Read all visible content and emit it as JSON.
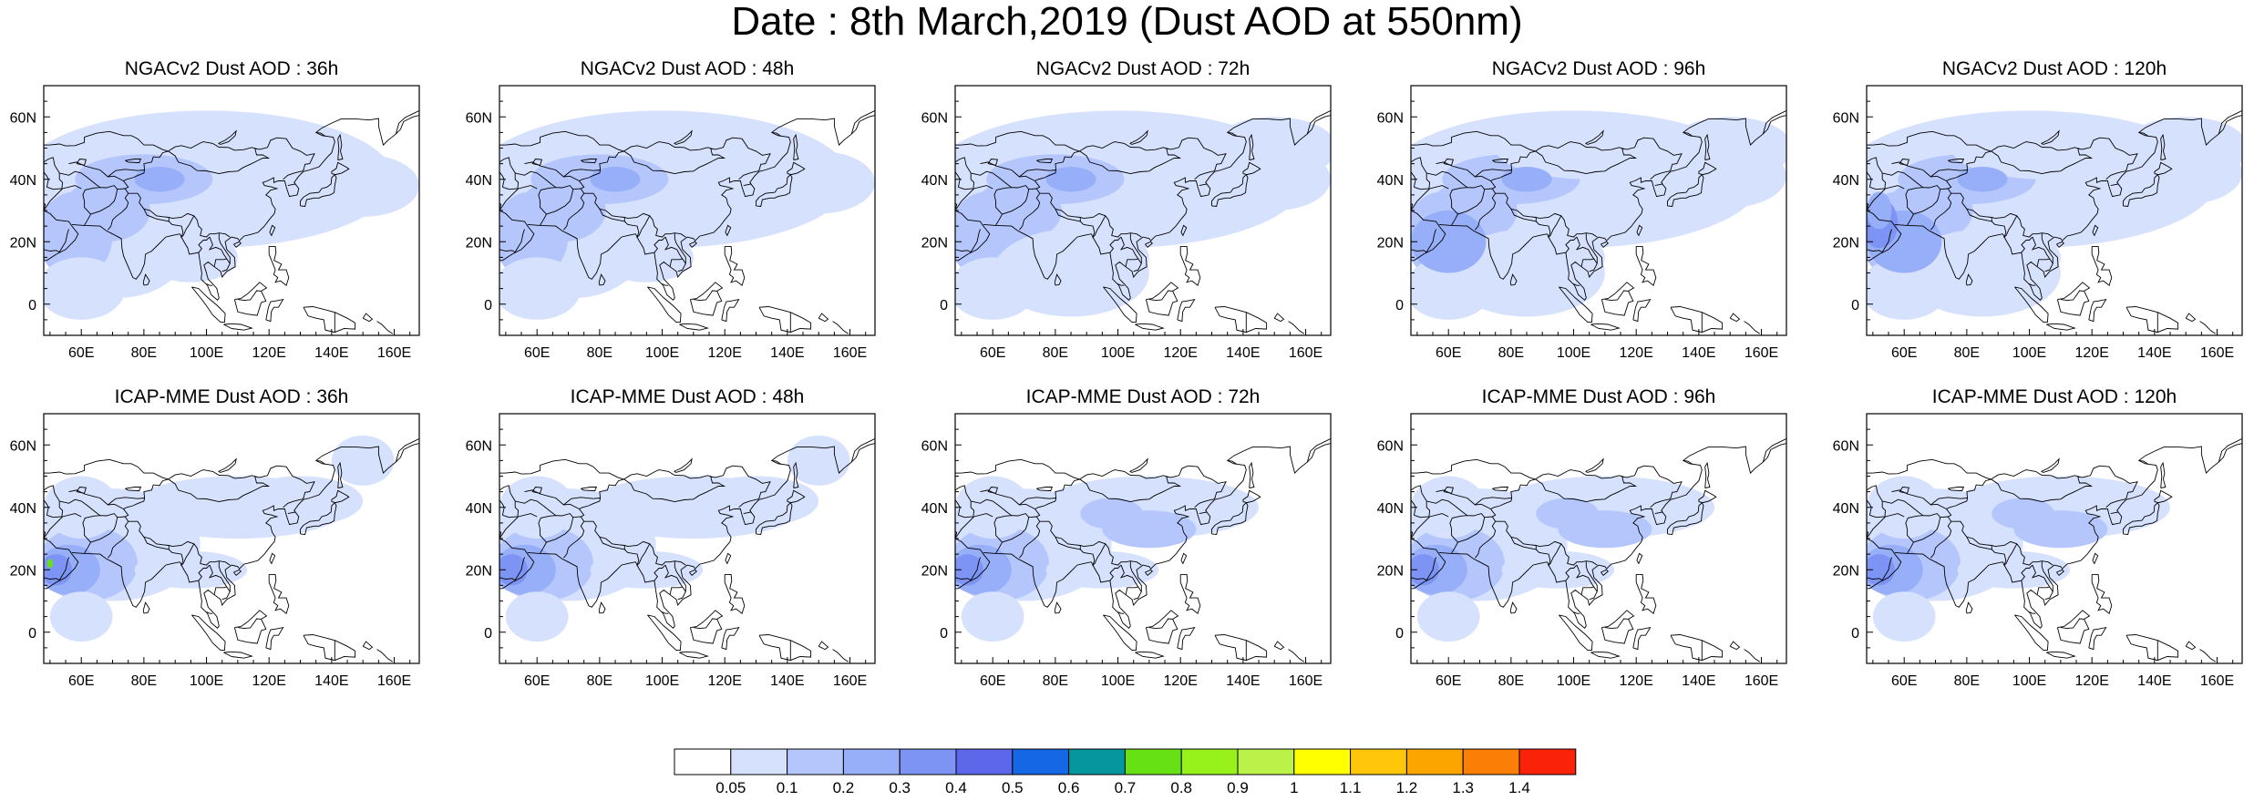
{
  "title": "Date : 8th March,2019 (Dust AOD at 550nm)",
  "panels": [
    {
      "id": "ngac-36h",
      "title": "NGACv2 Dust AOD : 36h"
    },
    {
      "id": "ngac-48h",
      "title": "NGACv2 Dust AOD : 48h"
    },
    {
      "id": "ngac-72h",
      "title": "NGACv2 Dust AOD : 72h"
    },
    {
      "id": "ngac-96h",
      "title": "NGACv2 Dust AOD : 96h"
    },
    {
      "id": "ngac-120h",
      "title": "NGACv2 Dust AOD : 120h"
    },
    {
      "id": "icap-36h",
      "title": "ICAP-MME Dust AOD : 36h"
    },
    {
      "id": "icap-48h",
      "title": "ICAP-MME Dust AOD : 48h"
    },
    {
      "id": "icap-72h",
      "title": "ICAP-MME Dust AOD : 72h"
    },
    {
      "id": "icap-96h",
      "title": "ICAP-MME Dust AOD : 96h"
    },
    {
      "id": "icap-120h",
      "title": "ICAP-MME Dust AOD : 120h"
    }
  ],
  "map_axes": {
    "lon_range": [
      48,
      168
    ],
    "lat_range": [
      -10,
      70
    ],
    "lon_ticks": [
      "60E",
      "80E",
      "100E",
      "120E",
      "140E",
      "160E"
    ],
    "lon_tick_values": [
      60,
      80,
      100,
      120,
      140,
      160
    ],
    "lat_ticks": [
      "60N",
      "40N",
      "20N",
      "0"
    ],
    "lat_tick_values": [
      60,
      40,
      20,
      0
    ]
  },
  "colorbar": {
    "labels": [
      "0.05",
      "0.1",
      "0.2",
      "0.3",
      "0.4",
      "0.5",
      "0.6",
      "0.7",
      "0.8",
      "0.9",
      "1",
      "1.1",
      "1.2",
      "1.3",
      "1.4"
    ],
    "colors": [
      "#ffffff",
      "#d6e1fd",
      "#b4c6fb",
      "#97aef9",
      "#7d94f5",
      "#5c67ea",
      "#1667e4",
      "#05969e",
      "#66e214",
      "#96f21a",
      "#bbf24a",
      "#ffff00",
      "#ffc60a",
      "#fca400",
      "#fb7e06",
      "#fb220a"
    ]
  }
}
